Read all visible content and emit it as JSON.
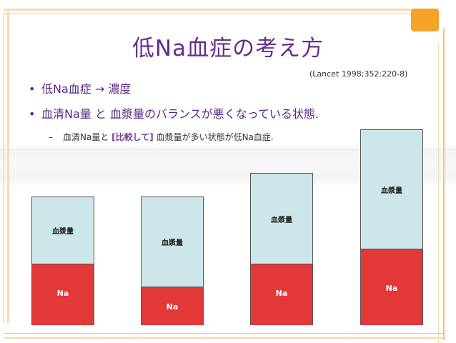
{
  "title": "低Na血症の考え方",
  "citation": "(Lancet 1998;352:220-8)",
  "bullet_symbol": "•",
  "bullets": [
    "低Na血症 → 濃度",
    "血清Na量 と 血漿量のバランスが悪くなっている状態."
  ],
  "sub_bullet": {
    "dash": "–",
    "part1": "血清Na量と ",
    "emphasis": "[比較して]",
    "part2": " 血漿量が多い状態が低Na血症."
  },
  "bars": [
    {
      "upper_label": "血漿量",
      "lower_label": "Na"
    },
    {
      "upper_label": "血漿量",
      "lower_label": "Na"
    },
    {
      "upper_label": "血漿量",
      "lower_label": "Na"
    },
    {
      "upper_label": "血漿量",
      "lower_label": "Na"
    }
  ],
  "colors": {
    "title": "#6a2c8c",
    "accent": "#f4a428",
    "plasma": "#cce6ea",
    "sodium": "#e33838"
  }
}
